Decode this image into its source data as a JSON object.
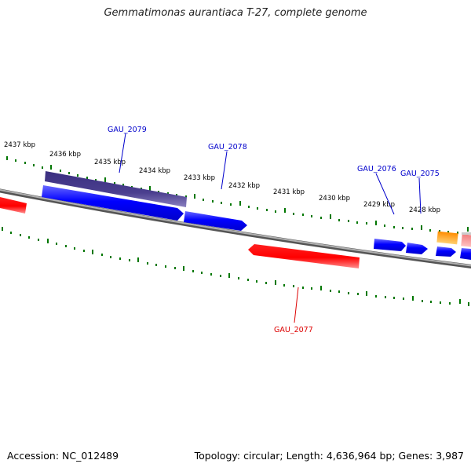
{
  "title": "Gemmatimonas aurantiaca T-27, complete genome",
  "footer": {
    "accession": "Accession: NC_012489",
    "summary": "Topology: circular; Length: 4,636,964 bp; Genes: 3,987"
  },
  "colors": {
    "forward_strand": "#0000ff",
    "reverse_strand": "#ff0000",
    "feature_dark": "#4b3f8f",
    "orange_feature": "#f5a000",
    "pink_feature": "#f08080",
    "backbone": "#808080",
    "ticks": "#007700",
    "label_forward": "#0000cc",
    "label_reverse": "#dd0000"
  },
  "scale": {
    "unit": "kbp",
    "labels": [
      "2437 kbp",
      "2436 kbp",
      "2435 kbp",
      "2434 kbp",
      "2433 kbp",
      "2432 kbp",
      "2431 kbp",
      "2430 kbp",
      "2429 kbp",
      "2428 kbp"
    ]
  },
  "genes": [
    {
      "id": "GAU_2079",
      "strand": "forward"
    },
    {
      "id": "GAU_2078",
      "strand": "forward"
    },
    {
      "id": "GAU_2077",
      "strand": "reverse"
    },
    {
      "id": "GAU_2076",
      "strand": "forward"
    },
    {
      "id": "GAU_2075",
      "strand": "forward"
    }
  ]
}
